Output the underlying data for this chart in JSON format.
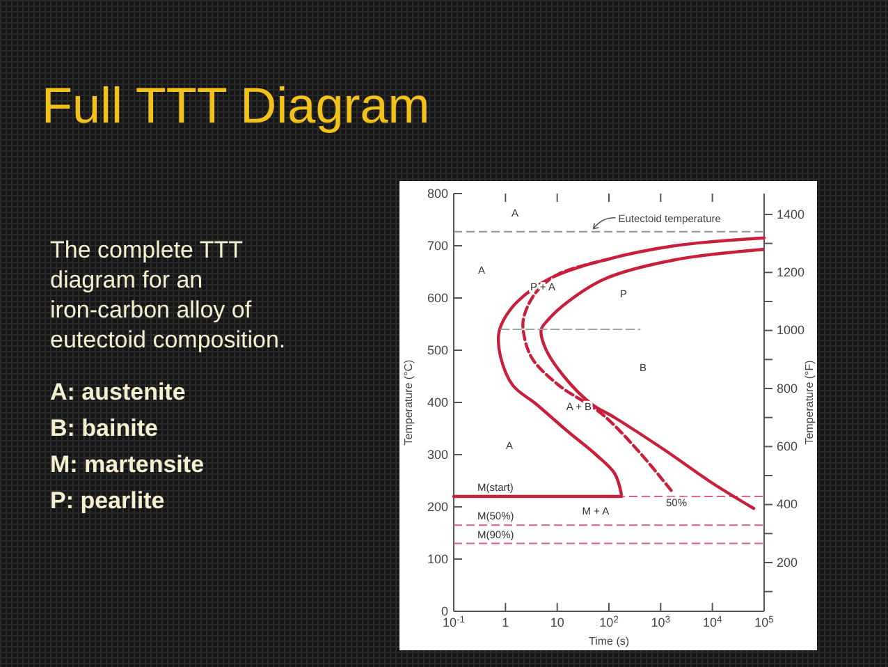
{
  "chart_data": {
    "type": "line",
    "title": "Full TTT Diagram",
    "subtitle": "The complete TTT diagram for an iron-carbon alloy of eutectoid composition.",
    "xlabel": "Time (s)",
    "ylabel": "Temperature (°C)",
    "y2label": "Temperature (°F)",
    "log": "x",
    "xlim": [
      0.1,
      100000
    ],
    "xticks": [
      {
        "value": 0.1,
        "label": "10$^{-1}$"
      },
      1,
      10,
      {
        "value": 100,
        "label": "10$^{2}$"
      },
      {
        "value": 1000,
        "label": "10$^{3}$"
      },
      {
        "value": 10000,
        "label": "10$^{4}$"
      },
      {
        "value": 100000,
        "label": "10$^{5}$"
      }
    ],
    "ylim": [
      0,
      800
    ],
    "yticks": [
      0,
      100,
      200,
      300,
      400,
      500,
      600,
      700,
      800
    ],
    "y2lim": [
      32,
      1472
    ],
    "y2ticks": [
      {
        "value": 100,
        "label": null
      },
      200,
      {
        "value": 300,
        "label": null
      },
      400,
      {
        "value": 500,
        "label": null
      },
      600,
      {
        "value": 700,
        "label": null
      },
      800,
      {
        "value": 900,
        "label": null
      },
      1000,
      {
        "value": 1100,
        "label": null
      },
      1200,
      {
        "value": 1300,
        "label": null
      },
      1400
    ],
    "grid": false,
    "series": [
      {
        "color": "#c8203c",
        "line_style": "solid",
        "x": [
          100000,
          1860,
          85,
          7.1,
          1.7,
          0.91,
          0.74,
          0.81,
          1.38,
          3.9,
          16.2,
          56,
          129,
          174
        ],
        "values": [
          715,
          700,
          673,
          637,
          593,
          557,
          531,
          486,
          433,
          397,
          344,
          300,
          264,
          224
        ]
      },
      {
        "color": "#c8203c",
        "line_style": "dashed",
        "x": [
          105,
          10.7,
          3.9,
          2.3,
          2.2,
          3.2,
          10.7,
          69,
          363,
          1700
        ],
        "values": [
          675,
          646,
          611,
          566,
          539,
          486,
          433,
          380,
          308,
          228
        ]
      },
      {
        "color": "#c8203c",
        "line_style": "solid",
        "x": [
          95000,
          1860,
          85,
          16.2,
          6.5,
          4.9,
          5.9,
          13.2,
          46,
          129,
          1230,
          9800,
          63000
        ],
        "values": [
          693,
          673,
          637,
          593,
          557,
          539,
          504,
          451,
          397,
          371,
          308,
          246,
          197
        ]
      },
      {
        "color": "#c8203c",
        "line_style": "solid",
        "x": [
          0.1,
          174
        ],
        "values": [
          220,
          220
        ]
      },
      {
        "color": "#a0a0a0",
        "line_style": "dashed",
        "x": [
          0.81,
          398
        ],
        "values": [
          540,
          540
        ]
      }
    ],
    "ref_lines": [
      {
        "axis": "y",
        "value": 727,
        "label": "Eutectoid temperature",
        "color": "#909090",
        "line_style": "dashed"
      },
      {
        "axis": "y",
        "value": 220,
        "label": "M(start)",
        "color": "#e06080",
        "line_style": "dashed"
      },
      {
        "axis": "y",
        "value": 165,
        "label": "M(50%)",
        "color": "#e06080",
        "line_style": "dashed"
      },
      {
        "axis": "y",
        "value": 130,
        "label": "M(90%)",
        "color": "#e06080",
        "line_style": "dashed"
      }
    ],
    "annotations": [
      "A: austenite",
      "B: bainite",
      "M: martensite",
      "P: pearlite",
      "A",
      "A",
      "A",
      "P",
      "B",
      "M + A",
      "50%",
      "P + A",
      "A + B"
    ]
  }
}
